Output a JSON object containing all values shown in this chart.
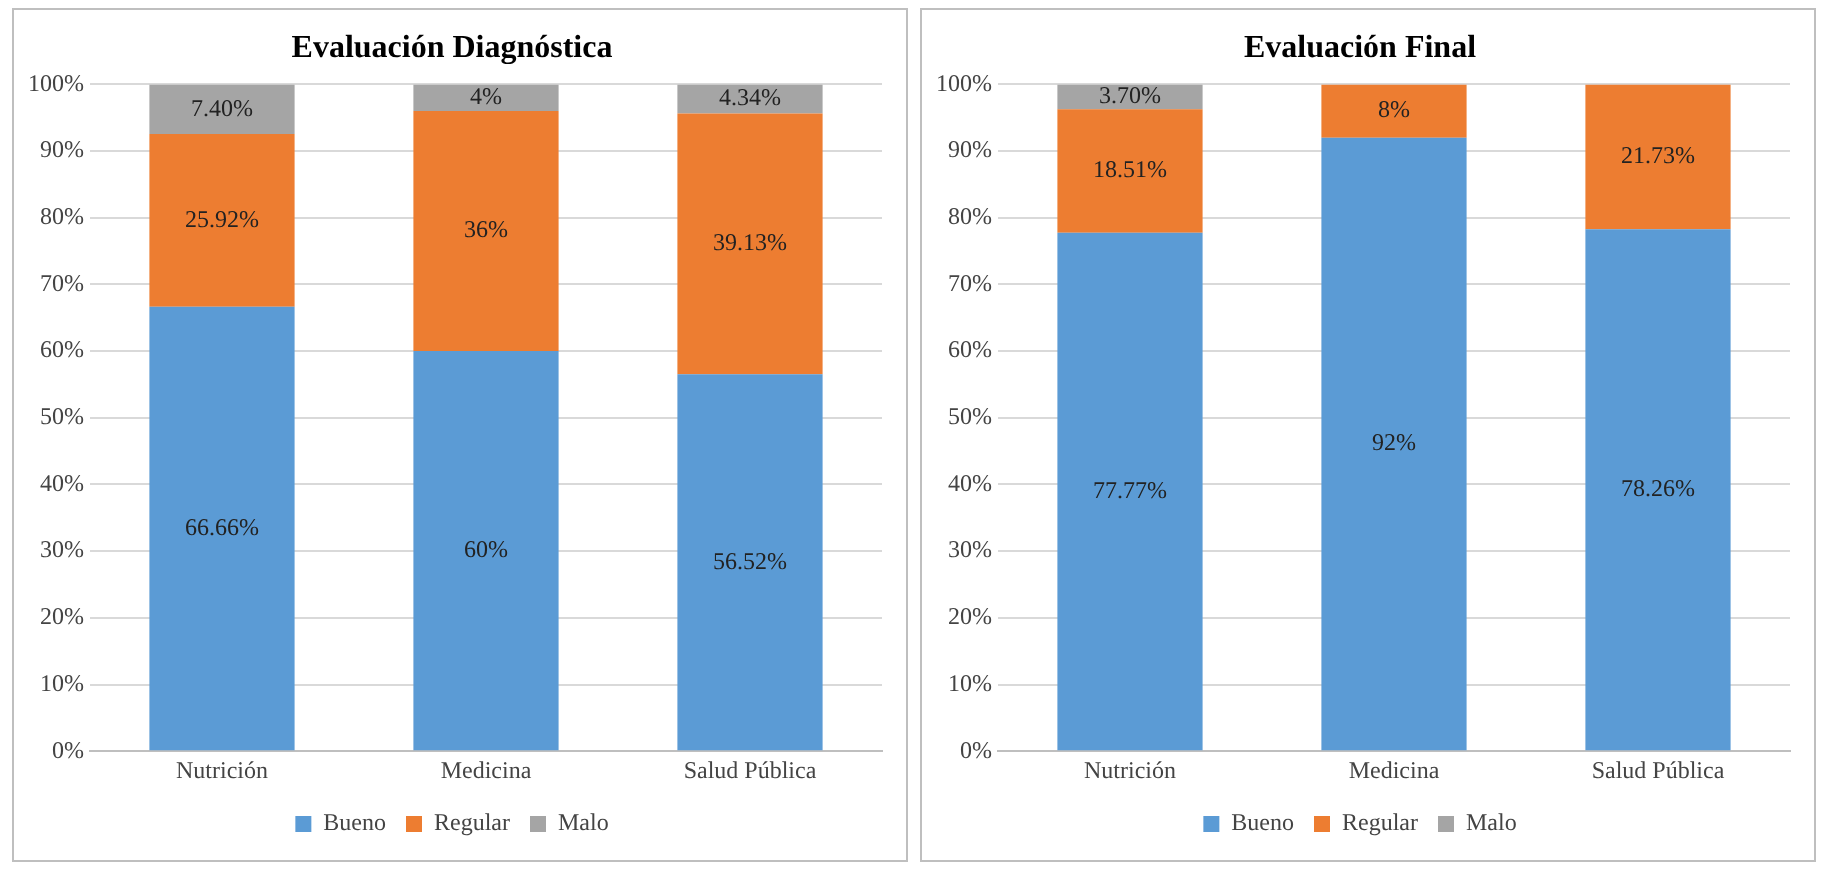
{
  "chart_data": [
    {
      "type": "bar",
      "title": "Evaluación Diagnóstica",
      "stacked": true,
      "categories": [
        "Nutrición",
        "Medicina",
        "Salud Pública"
      ],
      "series": [
        {
          "name": "Bueno",
          "color": "#5b9bd5",
          "values": [
            66.66,
            60,
            56.52
          ],
          "value_labels": [
            "66.66%",
            "60%",
            "56.52%"
          ]
        },
        {
          "name": "Regular",
          "color": "#ed7d31",
          "values": [
            25.92,
            36,
            39.13
          ],
          "value_labels": [
            "25.92%",
            "36%",
            "39.13%"
          ]
        },
        {
          "name": "Malo",
          "color": "#a5a5a5",
          "values": [
            7.4,
            4,
            4.34
          ],
          "value_labels": [
            "7.40%",
            "4%",
            "4.34%"
          ]
        }
      ],
      "ylim": [
        0,
        100
      ],
      "yticks": [
        {
          "value": 0,
          "label": "0%"
        },
        {
          "value": 10,
          "label": "10%"
        },
        {
          "value": 20,
          "label": "20%"
        },
        {
          "value": 30,
          "label": "30%"
        },
        {
          "value": 40,
          "label": "40%"
        },
        {
          "value": 50,
          "label": "50%"
        },
        {
          "value": 60,
          "label": "60%"
        },
        {
          "value": 70,
          "label": "70%"
        },
        {
          "value": 80,
          "label": "80%"
        },
        {
          "value": 90,
          "label": "90%"
        },
        {
          "value": 100,
          "label": "100%"
        }
      ],
      "grid": "y",
      "legend": "bottom"
    },
    {
      "type": "bar",
      "title": "Evaluación Final",
      "stacked": true,
      "categories": [
        "Nutrición",
        "Medicina",
        "Salud Pública"
      ],
      "series": [
        {
          "name": "Bueno",
          "color": "#5b9bd5",
          "values": [
            77.77,
            92,
            78.26
          ],
          "value_labels": [
            "77.77%",
            "92%",
            "78.26%"
          ]
        },
        {
          "name": "Regular",
          "color": "#ed7d31",
          "values": [
            18.51,
            8,
            21.73
          ],
          "value_labels": [
            "18.51%",
            "8%",
            "21.73%"
          ]
        },
        {
          "name": "Malo",
          "color": "#a5a5a5",
          "values": [
            3.7,
            null,
            null
          ],
          "value_labels": [
            "3.70%",
            null,
            null
          ]
        }
      ],
      "ylim": [
        0,
        100
      ],
      "yticks": [
        {
          "value": 0,
          "label": "0%"
        },
        {
          "value": 10,
          "label": "10%"
        },
        {
          "value": 20,
          "label": "20%"
        },
        {
          "value": 30,
          "label": "30%"
        },
        {
          "value": 40,
          "label": "40%"
        },
        {
          "value": 50,
          "label": "50%"
        },
        {
          "value": 60,
          "label": "60%"
        },
        {
          "value": 70,
          "label": "70%"
        },
        {
          "value": 80,
          "label": "80%"
        },
        {
          "value": 90,
          "label": "90%"
        },
        {
          "value": 100,
          "label": "100%"
        }
      ],
      "grid": "y",
      "legend": "bottom"
    }
  ]
}
